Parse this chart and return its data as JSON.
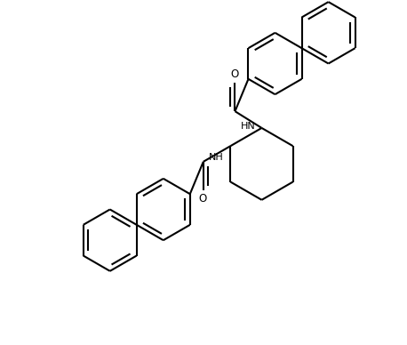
{
  "bg": "#ffffff",
  "lc": "#000000",
  "lw": 1.5,
  "fw": 4.58,
  "fh": 3.88,
  "dpi": 100,
  "rb": 0.18,
  "rc": 0.21,
  "doff": 0.028,
  "fs": 8.0,
  "xlim": [
    -1.05,
    1.05
  ],
  "ylim": [
    -1.0,
    1.0
  ]
}
